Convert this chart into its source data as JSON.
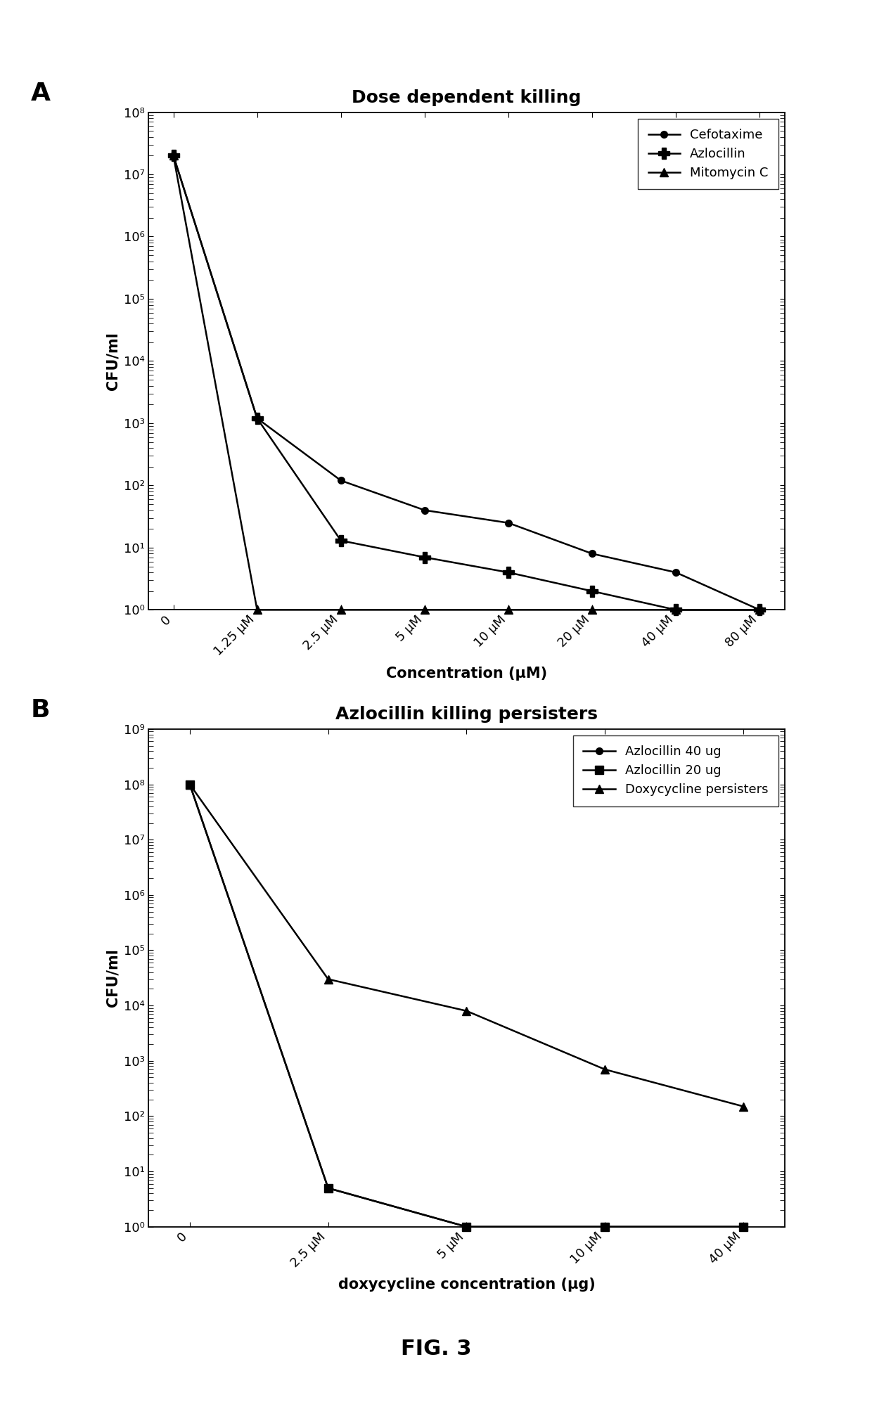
{
  "panel_A": {
    "title": "Dose dependent killing",
    "xlabel": "Concentration (μM)",
    "ylabel": "CFU/ml",
    "x_labels": [
      "0",
      "1.25 μM",
      "2.5 μM",
      "5 μM",
      "10 μM",
      "20 μM",
      "40 μM",
      "80 μM"
    ],
    "x_positions": [
      0,
      1,
      2,
      3,
      4,
      5,
      6,
      7
    ],
    "ylim_log": [
      1.0,
      100000000.0
    ],
    "ytick_vals": [
      1.0,
      10.0,
      100.0,
      1000.0,
      10000.0,
      100000.0,
      1000000.0,
      10000000.0,
      100000000.0
    ],
    "ytick_labels": [
      "10⁰",
      "10¹",
      "10²",
      "10³",
      "10⁴",
      "10⁵",
      "10⁶",
      "10⁷",
      "10⁸"
    ],
    "series": [
      {
        "label": "Cefotaxime",
        "marker": "o",
        "color": "#000000",
        "values": [
          20000000.0,
          1200.0,
          120.0,
          40.0,
          25.0,
          8.0,
          4.0,
          1.0
        ]
      },
      {
        "label": "Azlocillin",
        "marker": "P",
        "color": "#000000",
        "values": [
          20000000.0,
          1200.0,
          13.0,
          7.0,
          4.0,
          2.0,
          1.0,
          1.0
        ]
      },
      {
        "label": "Mitomycin C",
        "marker": "^",
        "color": "#000000",
        "values": [
          20000000.0,
          1.0,
          1.0,
          1.0,
          1.0,
          1.0,
          1.0,
          1.0
        ]
      }
    ]
  },
  "panel_B": {
    "title": "Azlocillin killing persisters",
    "xlabel": "doxycycline concentration (μg)",
    "ylabel": "CFU/ml",
    "x_labels": [
      "0",
      "2.5 μM",
      "5 μM",
      "10 μM",
      "40 μM"
    ],
    "x_positions": [
      0,
      1,
      2,
      3,
      4
    ],
    "ylim_log": [
      1.0,
      1000000000.0
    ],
    "ytick_vals": [
      1.0,
      10.0,
      100.0,
      1000.0,
      10000.0,
      100000.0,
      1000000.0,
      10000000.0,
      100000000.0,
      1000000000.0
    ],
    "ytick_labels": [
      "10⁰",
      "10¹",
      "10²",
      "10³",
      "10⁴",
      "10⁵",
      "10⁶",
      "10⁷",
      "10⁸",
      "10⁹"
    ],
    "series": [
      {
        "label": "Azlocillin 40 ug",
        "marker": "o",
        "color": "#000000",
        "values": [
          100000000.0,
          5.0,
          1.0,
          1.0,
          1.0
        ]
      },
      {
        "label": "Azlocillin 20 ug",
        "marker": "s",
        "color": "#000000",
        "values": [
          100000000.0,
          5.0,
          1.0,
          1.0,
          1.0
        ]
      },
      {
        "label": "Doxycycline persisters",
        "marker": "^",
        "color": "#000000",
        "values": [
          100000000.0,
          30000.0,
          8000.0,
          700.0,
          150.0
        ]
      }
    ]
  },
  "fig_label": "FIG. 3",
  "background_color": "#ffffff",
  "panel_label_fontsize": 26,
  "title_fontsize": 18,
  "axis_label_fontsize": 15,
  "tick_fontsize": 13,
  "legend_fontsize": 13
}
